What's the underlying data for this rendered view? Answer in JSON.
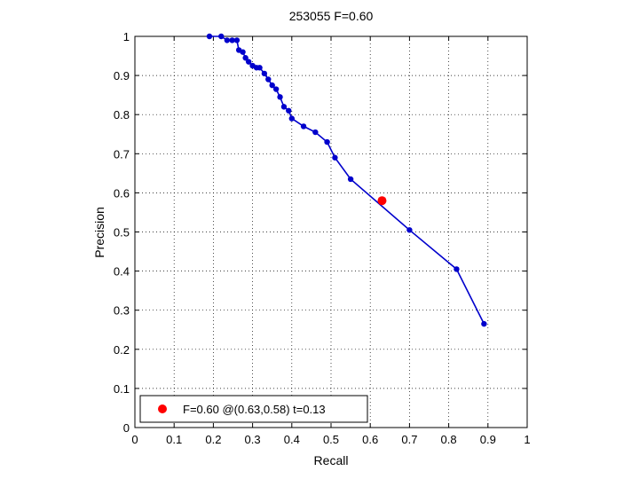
{
  "chart_data": {
    "type": "line",
    "title": "253055 F=0.60",
    "xlabel": "Recall",
    "ylabel": "Precision",
    "xlim": [
      0,
      1
    ],
    "ylim": [
      0,
      1
    ],
    "grid": true,
    "grid_style": "dotted",
    "xticks": [
      "0",
      "0.1",
      "0.2",
      "0.3",
      "0.4",
      "0.5",
      "0.6",
      "0.7",
      "0.8",
      "0.9",
      "1"
    ],
    "yticks": [
      "0",
      "0.1",
      "0.2",
      "0.3",
      "0.4",
      "0.5",
      "0.6",
      "0.7",
      "0.8",
      "0.9",
      "1"
    ],
    "legend_placement": "bottom-left",
    "series": [
      {
        "color": "#0000cc",
        "marker": "dot",
        "points": [
          [
            0.19,
            1.0
          ],
          [
            0.22,
            1.0
          ],
          [
            0.235,
            0.99
          ],
          [
            0.248,
            0.99
          ],
          [
            0.26,
            0.99
          ],
          [
            0.265,
            0.965
          ],
          [
            0.275,
            0.96
          ],
          [
            0.282,
            0.945
          ],
          [
            0.29,
            0.935
          ],
          [
            0.3,
            0.925
          ],
          [
            0.31,
            0.92
          ],
          [
            0.318,
            0.92
          ],
          [
            0.33,
            0.905
          ],
          [
            0.34,
            0.89
          ],
          [
            0.35,
            0.875
          ],
          [
            0.36,
            0.865
          ],
          [
            0.37,
            0.845
          ],
          [
            0.38,
            0.82
          ],
          [
            0.392,
            0.81
          ],
          [
            0.4,
            0.79
          ],
          [
            0.43,
            0.77
          ],
          [
            0.46,
            0.755
          ],
          [
            0.49,
            0.73
          ],
          [
            0.51,
            0.69
          ],
          [
            0.55,
            0.635
          ],
          [
            0.7,
            0.505
          ],
          [
            0.82,
            0.405
          ],
          [
            0.89,
            0.265
          ]
        ]
      }
    ],
    "highlight": {
      "x": 0.63,
      "y": 0.58,
      "color": "#ff0000",
      "label": "F=0.60 @(0.63,0.58) t=0.13"
    }
  }
}
